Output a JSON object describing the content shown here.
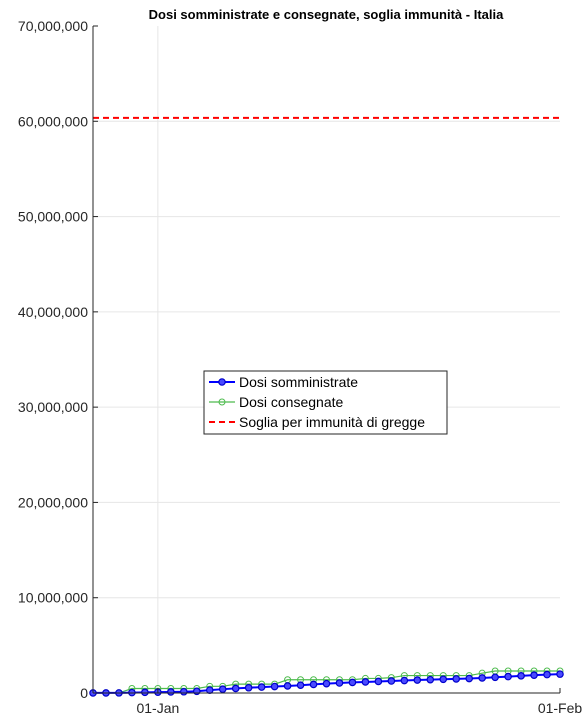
{
  "chart_data": {
    "type": "line",
    "title": "Dosi somministrate e consegnate, soglia immunità - Italia",
    "xlabel": "",
    "ylabel": "",
    "x_start": "2020-12-27",
    "x_end": "2021-02-01",
    "ylim": [
      0,
      70000000
    ],
    "yticks": [
      0,
      10000000,
      20000000,
      30000000,
      40000000,
      50000000,
      60000000,
      70000000
    ],
    "ytick_labels": [
      "0",
      "10,000,000",
      "20,000,000",
      "30,000,000",
      "40,000,000",
      "50,000,000",
      "60,000,000",
      "70,000,000"
    ],
    "xticks": [
      "2021-01-01",
      "2021-02-01"
    ],
    "xtick_labels": [
      "01-Jan",
      "01-Feb"
    ],
    "grid": true,
    "legend_position": "center",
    "series": [
      {
        "name": "Dosi somministrate",
        "color": "#0000ff",
        "marker": "circle",
        "x": [
          "2020-12-27",
          "2020-12-28",
          "2020-12-29",
          "2020-12-30",
          "2020-12-31",
          "2021-01-01",
          "2021-01-02",
          "2021-01-03",
          "2021-01-04",
          "2021-01-05",
          "2021-01-06",
          "2021-01-07",
          "2021-01-08",
          "2021-01-09",
          "2021-01-10",
          "2021-01-11",
          "2021-01-12",
          "2021-01-13",
          "2021-01-14",
          "2021-01-15",
          "2021-01-16",
          "2021-01-17",
          "2021-01-18",
          "2021-01-19",
          "2021-01-20",
          "2021-01-21",
          "2021-01-22",
          "2021-01-23",
          "2021-01-24",
          "2021-01-25",
          "2021-01-26",
          "2021-01-27",
          "2021-01-28",
          "2021-01-29",
          "2021-01-30",
          "2021-01-31",
          "2021-02-01"
        ],
        "values": [
          7000,
          9000,
          12000,
          40000,
          70000,
          90000,
          110000,
          130000,
          180000,
          300000,
          400000,
          480000,
          550000,
          620000,
          680000,
          740000,
          820000,
          900000,
          980000,
          1050000,
          1110000,
          1160000,
          1210000,
          1260000,
          1310000,
          1360000,
          1400000,
          1440000,
          1480000,
          1520000,
          1580000,
          1650000,
          1720000,
          1800000,
          1870000,
          1930000,
          1980000
        ]
      },
      {
        "name": "Dosi consegnate",
        "color": "#4dbb4d",
        "marker": "circle-open",
        "x": [
          "2020-12-27",
          "2020-12-28",
          "2020-12-29",
          "2020-12-30",
          "2020-12-31",
          "2021-01-01",
          "2021-01-02",
          "2021-01-03",
          "2021-01-04",
          "2021-01-05",
          "2021-01-06",
          "2021-01-07",
          "2021-01-08",
          "2021-01-09",
          "2021-01-10",
          "2021-01-11",
          "2021-01-12",
          "2021-01-13",
          "2021-01-14",
          "2021-01-15",
          "2021-01-16",
          "2021-01-17",
          "2021-01-18",
          "2021-01-19",
          "2021-01-20",
          "2021-01-21",
          "2021-01-22",
          "2021-01-23",
          "2021-01-24",
          "2021-01-25",
          "2021-01-26",
          "2021-01-27",
          "2021-01-28",
          "2021-01-29",
          "2021-01-30",
          "2021-01-31",
          "2021-02-01"
        ],
        "values": [
          9750,
          9750,
          9750,
          470000,
          470000,
          470000,
          470000,
          470000,
          470000,
          700000,
          700000,
          930000,
          930000,
          930000,
          930000,
          1390000,
          1390000,
          1390000,
          1390000,
          1390000,
          1390000,
          1530000,
          1530000,
          1610000,
          1830000,
          1830000,
          1830000,
          1830000,
          1830000,
          1830000,
          2080000,
          2310000,
          2310000,
          2310000,
          2310000,
          2310000,
          2310000
        ]
      },
      {
        "name": "Soglia per immunità di gregge",
        "color": "#ff0000",
        "style": "dashed",
        "x": [
          "2020-12-27",
          "2021-02-01"
        ],
        "values": [
          60360000,
          60360000
        ]
      }
    ]
  }
}
